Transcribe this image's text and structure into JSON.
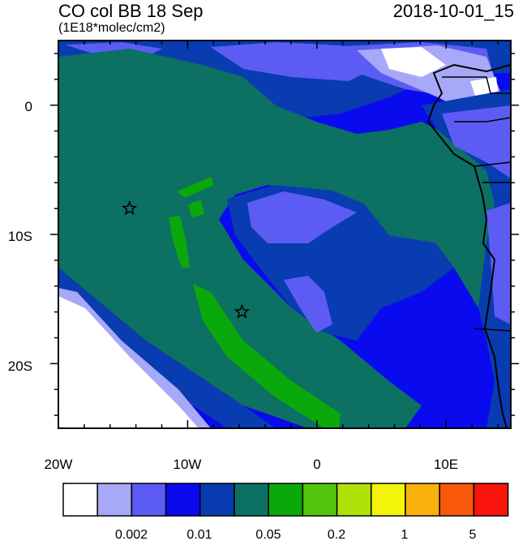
{
  "header": {
    "title_left": "CO col BB 18 Sep",
    "title_right": "2018-10-01_15",
    "units": "(1E18*molec/cm2)"
  },
  "axes": {
    "x_ticks": [
      "20W",
      "10W",
      "0",
      "10E"
    ],
    "y_ticks": [
      "0",
      "10S",
      "20S"
    ]
  },
  "colorbar": {
    "colors": [
      "#ffffff",
      "#a8a8f8",
      "#5c5cf4",
      "#0a0aee",
      "#083cb0",
      "#0c7063",
      "#0aa80a",
      "#55c60e",
      "#b0e20a",
      "#f4f40a",
      "#f8b00a",
      "#f8580a",
      "#f8140a"
    ],
    "labels": [
      "0.002",
      "0.01",
      "0.05",
      "0.2",
      "1",
      "5"
    ]
  },
  "markers": [
    {
      "name": "star-marker-1",
      "lon": -14.5,
      "lat": -8.0
    },
    {
      "name": "star-marker-2",
      "lon": -5.8,
      "lat": -16.0
    }
  ]
}
